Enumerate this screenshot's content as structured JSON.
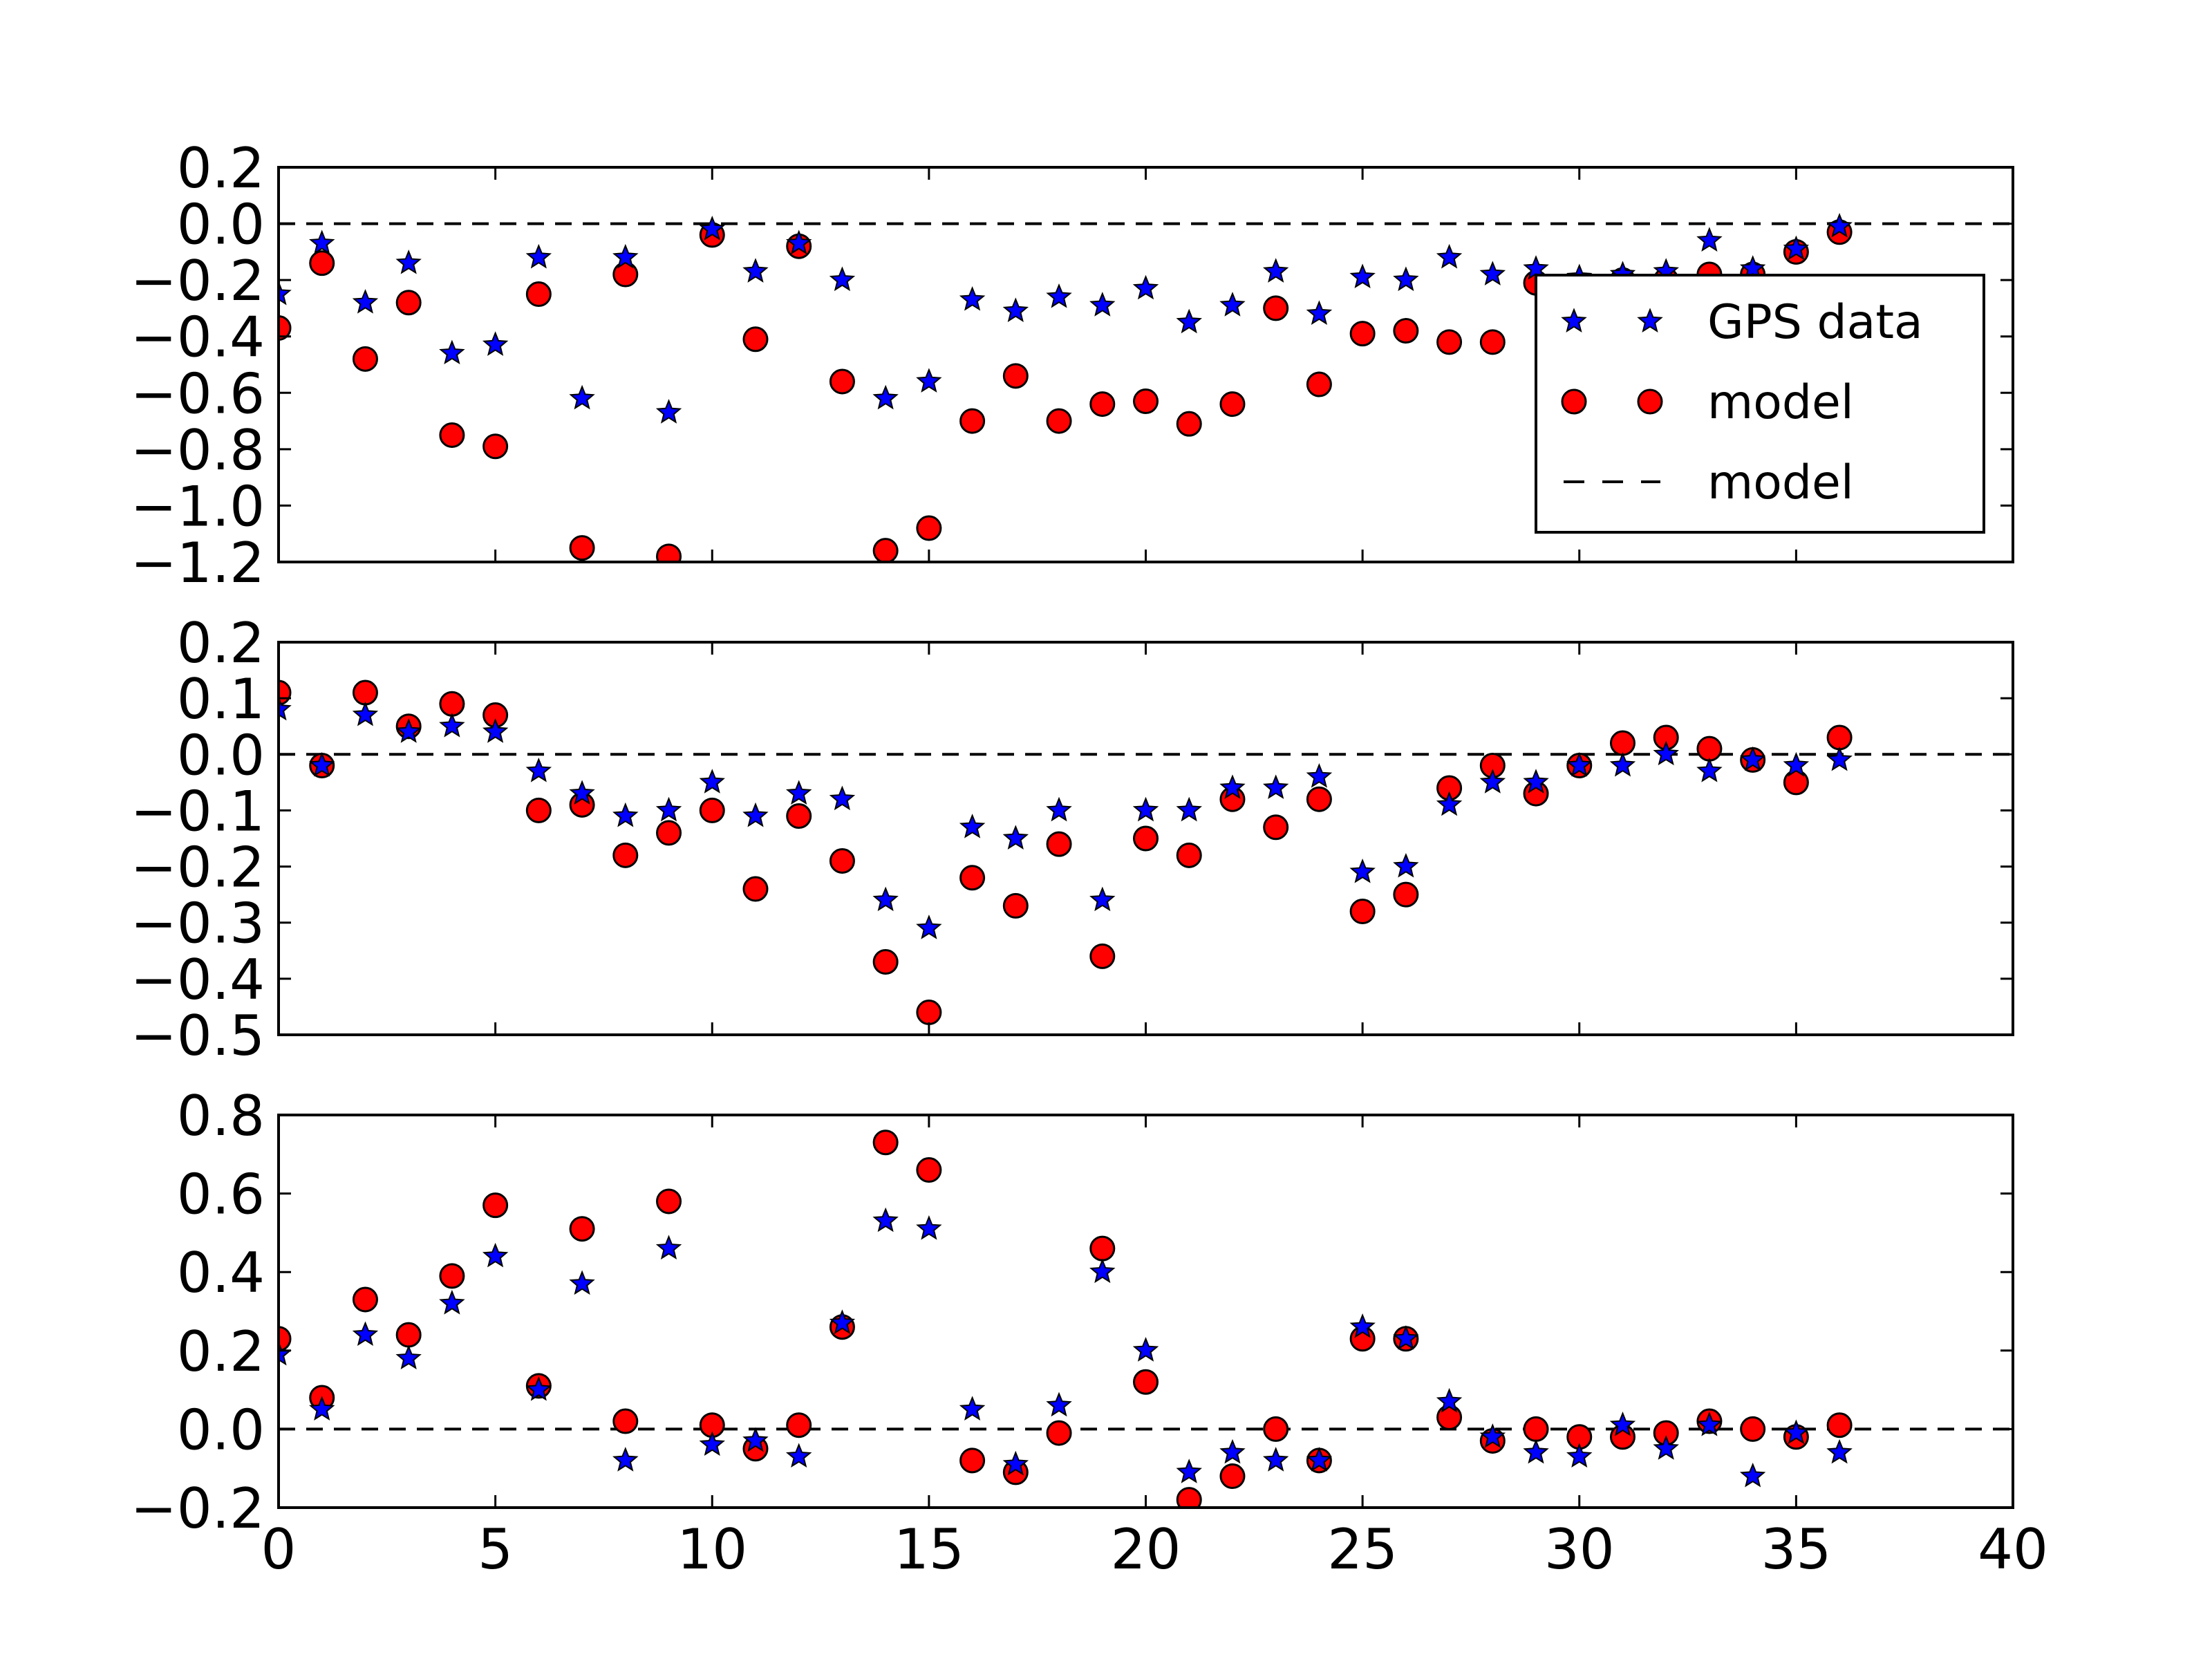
{
  "chart_data": [
    {
      "type": "scatter",
      "panel": "top",
      "xlim": [
        0,
        40
      ],
      "ylim": [
        -1.2,
        0.2
      ],
      "xticks": [
        "0",
        "5",
        "10",
        "15",
        "20",
        "25",
        "30",
        "35",
        "40"
      ],
      "xtick_values": [
        0,
        5,
        10,
        15,
        20,
        25,
        30,
        35,
        40
      ],
      "show_xtick_labels": false,
      "yticks": [
        "0.2",
        "0.0",
        "−0.2",
        "−0.4",
        "−0.6",
        "−0.8",
        "−1.0",
        "−1.2"
      ],
      "ytick_values": [
        0.2,
        0.0,
        -0.2,
        -0.4,
        -0.6,
        -0.8,
        -1.0,
        -1.2
      ],
      "grid": false,
      "reference_line_y": 0,
      "legend_position": "right",
      "x": [
        0,
        1,
        2,
        3,
        4,
        5,
        6,
        7,
        8,
        9,
        10,
        11,
        12,
        13,
        14,
        15,
        16,
        17,
        18,
        19,
        20,
        21,
        22,
        23,
        24,
        25,
        26,
        27,
        28,
        29,
        30,
        31,
        32,
        33,
        34,
        35,
        36
      ],
      "series": [
        {
          "name": "GPS data",
          "marker": "star",
          "color": "#0000ff",
          "values": [
            -0.25,
            -0.07,
            -0.28,
            -0.14,
            -0.46,
            -0.43,
            -0.12,
            -0.62,
            -0.12,
            -0.67,
            -0.02,
            -0.17,
            -0.07,
            -0.2,
            -0.62,
            -0.56,
            -0.27,
            -0.31,
            -0.26,
            -0.29,
            -0.23,
            -0.35,
            -0.29,
            -0.17,
            -0.32,
            -0.19,
            -0.2,
            -0.12,
            -0.18,
            -0.16,
            -0.19,
            -0.18,
            -0.17,
            -0.06,
            -0.16,
            -0.09,
            -0.01
          ]
        },
        {
          "name": "model",
          "marker": "circle",
          "color": "#ff0000",
          "values": [
            -0.37,
            -0.14,
            -0.48,
            -0.28,
            -0.75,
            -0.79,
            -0.25,
            -1.15,
            -0.18,
            -1.18,
            -0.04,
            -0.41,
            -0.08,
            -0.56,
            -1.16,
            -1.08,
            -0.7,
            -0.54,
            -0.7,
            -0.64,
            -0.63,
            -0.71,
            -0.64,
            -0.3,
            -0.57,
            -0.39,
            -0.38,
            -0.42,
            -0.42,
            -0.21,
            -0.22,
            -0.2,
            -0.2,
            -0.18,
            -0.18,
            -0.1,
            -0.03
          ]
        }
      ],
      "legend": [
        {
          "label": "GPS data",
          "style": "star",
          "color": "#0000ff"
        },
        {
          "label": "model",
          "style": "circle",
          "color": "#ff0000"
        },
        {
          "label": "model",
          "style": "dashed",
          "color": "#000000"
        }
      ]
    },
    {
      "type": "scatter",
      "panel": "middle",
      "xlim": [
        0,
        40
      ],
      "ylim": [
        -0.5,
        0.2
      ],
      "xticks": [
        "0",
        "5",
        "10",
        "15",
        "20",
        "25",
        "30",
        "35",
        "40"
      ],
      "xtick_values": [
        0,
        5,
        10,
        15,
        20,
        25,
        30,
        35,
        40
      ],
      "show_xtick_labels": false,
      "yticks": [
        "0.2",
        "0.1",
        "0.0",
        "−0.1",
        "−0.2",
        "−0.3",
        "−0.4",
        "−0.5"
      ],
      "ytick_values": [
        0.2,
        0.1,
        0.0,
        -0.1,
        -0.2,
        -0.3,
        -0.4,
        -0.5
      ],
      "grid": false,
      "reference_line_y": 0,
      "x": [
        0,
        1,
        2,
        3,
        4,
        5,
        6,
        7,
        8,
        9,
        10,
        11,
        12,
        13,
        14,
        15,
        16,
        17,
        18,
        19,
        20,
        21,
        22,
        23,
        24,
        25,
        26,
        27,
        28,
        29,
        30,
        31,
        32,
        33,
        34,
        35,
        36
      ],
      "series": [
        {
          "name": "GPS data",
          "marker": "star",
          "color": "#0000ff",
          "values": [
            0.08,
            -0.02,
            0.07,
            0.04,
            0.05,
            0.04,
            -0.03,
            -0.07,
            -0.11,
            -0.1,
            -0.05,
            -0.11,
            -0.07,
            -0.08,
            -0.26,
            -0.31,
            -0.13,
            -0.15,
            -0.1,
            -0.26,
            -0.1,
            -0.1,
            -0.06,
            -0.06,
            -0.04,
            -0.21,
            -0.2,
            -0.09,
            -0.05,
            -0.05,
            -0.02,
            -0.02,
            0.0,
            -0.03,
            -0.01,
            -0.02,
            -0.01
          ]
        },
        {
          "name": "model",
          "marker": "circle",
          "color": "#ff0000",
          "values": [
            0.11,
            -0.02,
            0.11,
            0.05,
            0.09,
            0.07,
            -0.1,
            -0.09,
            -0.18,
            -0.14,
            -0.1,
            -0.24,
            -0.11,
            -0.19,
            -0.37,
            -0.46,
            -0.22,
            -0.27,
            -0.16,
            -0.36,
            -0.15,
            -0.18,
            -0.08,
            -0.13,
            -0.08,
            -0.28,
            -0.25,
            -0.06,
            -0.02,
            -0.07,
            -0.02,
            0.02,
            0.03,
            0.01,
            -0.01,
            -0.05,
            0.03
          ]
        }
      ]
    },
    {
      "type": "scatter",
      "panel": "bottom",
      "xlim": [
        0,
        40
      ],
      "ylim": [
        -0.2,
        0.8
      ],
      "xticks": [
        "0",
        "5",
        "10",
        "15",
        "20",
        "25",
        "30",
        "35",
        "40"
      ],
      "xtick_values": [
        0,
        5,
        10,
        15,
        20,
        25,
        30,
        35,
        40
      ],
      "show_xtick_labels": true,
      "yticks": [
        "0.8",
        "0.6",
        "0.4",
        "0.2",
        "0.0",
        "−0.2"
      ],
      "ytick_values": [
        0.8,
        0.6,
        0.4,
        0.2,
        0.0,
        -0.2
      ],
      "grid": false,
      "reference_line_y": 0,
      "x": [
        0,
        1,
        2,
        3,
        4,
        5,
        6,
        7,
        8,
        9,
        10,
        11,
        12,
        13,
        14,
        15,
        16,
        17,
        18,
        19,
        20,
        21,
        22,
        23,
        24,
        25,
        26,
        27,
        28,
        29,
        30,
        31,
        32,
        33,
        34,
        35,
        36
      ],
      "series": [
        {
          "name": "GPS data",
          "marker": "star",
          "color": "#0000ff",
          "values": [
            0.19,
            0.05,
            0.24,
            0.18,
            0.32,
            0.44,
            0.1,
            0.37,
            -0.08,
            0.46,
            -0.04,
            -0.03,
            -0.07,
            0.27,
            0.53,
            0.51,
            0.05,
            -0.09,
            0.06,
            0.4,
            0.2,
            -0.11,
            -0.06,
            -0.08,
            -0.08,
            0.26,
            0.23,
            0.07,
            -0.02,
            -0.06,
            -0.07,
            0.01,
            -0.05,
            0.01,
            -0.12,
            -0.01,
            -0.06
          ]
        },
        {
          "name": "model",
          "marker": "circle",
          "color": "#ff0000",
          "values": [
            0.23,
            0.08,
            0.33,
            0.24,
            0.39,
            0.57,
            0.11,
            0.51,
            0.02,
            0.58,
            0.01,
            -0.05,
            0.01,
            0.26,
            0.73,
            0.66,
            -0.08,
            -0.11,
            -0.01,
            0.46,
            0.12,
            -0.18,
            -0.12,
            0.0,
            -0.08,
            0.23,
            0.23,
            0.03,
            -0.03,
            0.0,
            -0.02,
            -0.02,
            -0.01,
            0.02,
            0.0,
            -0.02,
            0.01
          ]
        }
      ]
    }
  ]
}
